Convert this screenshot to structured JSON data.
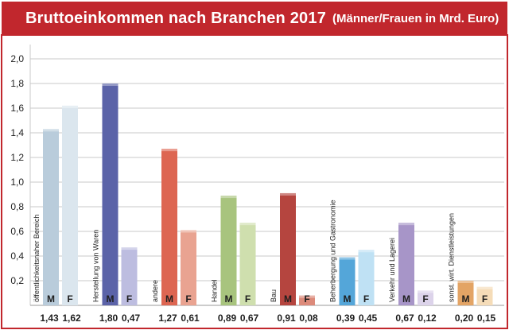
{
  "header": {
    "title": "Bruttoeinkommen nach Branchen 2017",
    "subtitle": "(Männer/Frauen in Mrd. Euro)"
  },
  "labels": {
    "male": "M",
    "female": "F"
  },
  "chart_data": {
    "type": "bar",
    "title": "Bruttoeinkommen nach Branchen 2017",
    "subtitle": "(Männer/Frauen in Mrd. Euro)",
    "categories": [
      "öffentlichkeitsnaher Bereich",
      "Herstellung von Waren",
      "andere",
      "Handel",
      "Bau",
      "Beherbergung und Gastronomie",
      "Verkehr und Lagerei",
      "sonst. wirt. Dienstleistungen"
    ],
    "series": [
      {
        "name": "M",
        "values": [
          1.43,
          1.8,
          1.27,
          0.89,
          0.91,
          0.39,
          0.67,
          0.2
        ]
      },
      {
        "name": "F",
        "values": [
          1.62,
          0.47,
          0.61,
          0.67,
          0.08,
          0.45,
          0.12,
          0.15
        ]
      }
    ],
    "value_labels": [
      [
        "1,43",
        "1,62"
      ],
      [
        "1,80",
        "0,47"
      ],
      [
        "1,27",
        "0,61"
      ],
      [
        "0,89",
        "0,67"
      ],
      [
        "0,91",
        "0,08"
      ],
      [
        "0,39",
        "0,45"
      ],
      [
        "0,67",
        "0,12"
      ],
      [
        "0,20",
        "0,15"
      ]
    ],
    "ylim": [
      0,
      2.0
    ],
    "yticks": [
      0.2,
      0.4,
      0.6,
      0.8,
      1.0,
      1.2,
      1.4,
      1.6,
      1.8,
      2.0
    ],
    "ytick_labels": [
      "0,2",
      "0,4",
      "0,6",
      "0,8",
      "1,0",
      "1,2",
      "1,4",
      "1,6",
      "1,8",
      "2,0"
    ],
    "grid": true,
    "colors": [
      [
        "#b9ccdb",
        "#dbe6ee"
      ],
      [
        "#5b63a8",
        "#bdbde0"
      ],
      [
        "#dd6652",
        "#e9a391"
      ],
      [
        "#a8c47e",
        "#cfdfae"
      ],
      [
        "#b5453f",
        "#dc8a7a"
      ],
      [
        "#54a6d9",
        "#bfe1f4"
      ],
      [
        "#a795c8",
        "#dcd3ea"
      ],
      [
        "#e3a465",
        "#f5dcb8"
      ]
    ],
    "label_text_color": "#1e1e1e",
    "frame_color": "#c1272d",
    "grid_color": "#c8c8c8"
  }
}
